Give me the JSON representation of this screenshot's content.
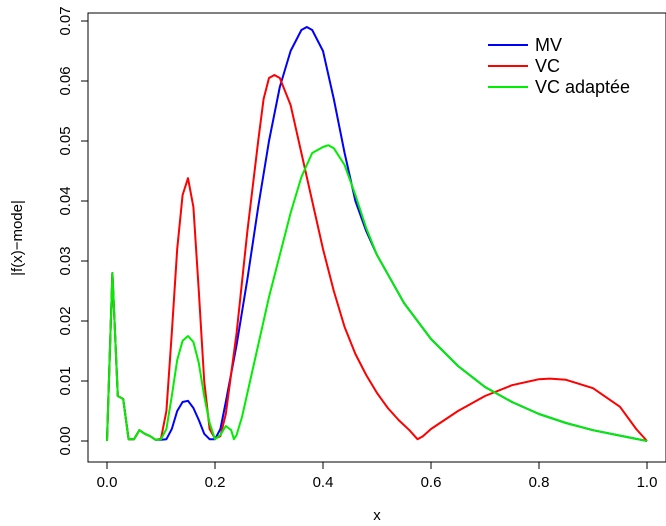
{
  "chart_data": {
    "type": "line",
    "title": "",
    "xlabel": "x",
    "ylabel": "|f(x)−mode|",
    "xlim": [
      0,
      1
    ],
    "ylim": [
      0,
      0.07
    ],
    "xticks": [
      "0.0",
      "0.2",
      "0.4",
      "0.6",
      "0.8",
      "1.0"
    ],
    "yticks": [
      "0.00",
      "0.01",
      "0.02",
      "0.03",
      "0.04",
      "0.05",
      "0.06",
      "0.07"
    ],
    "legend_position": "top-right",
    "grid": false,
    "series": [
      {
        "name": "MV",
        "color": "#0000ff",
        "points": [
          [
            0.0,
            0.0
          ],
          [
            0.01,
            0.028
          ],
          [
            0.02,
            0.0075
          ],
          [
            0.03,
            0.007
          ],
          [
            0.04,
            0.0003
          ],
          [
            0.05,
            0.0003
          ],
          [
            0.06,
            0.0018
          ],
          [
            0.07,
            0.0012
          ],
          [
            0.08,
            0.0008
          ],
          [
            0.09,
            0.0002
          ],
          [
            0.1,
            0.0002
          ],
          [
            0.11,
            0.0003
          ],
          [
            0.12,
            0.002
          ],
          [
            0.13,
            0.005
          ],
          [
            0.14,
            0.0065
          ],
          [
            0.15,
            0.0067
          ],
          [
            0.16,
            0.0055
          ],
          [
            0.17,
            0.0035
          ],
          [
            0.18,
            0.0012
          ],
          [
            0.19,
            0.0003
          ],
          [
            0.2,
            0.0003
          ],
          [
            0.21,
            0.002
          ],
          [
            0.22,
            0.0065
          ],
          [
            0.24,
            0.016
          ],
          [
            0.26,
            0.027
          ],
          [
            0.28,
            0.039
          ],
          [
            0.3,
            0.05
          ],
          [
            0.32,
            0.059
          ],
          [
            0.34,
            0.065
          ],
          [
            0.36,
            0.0685
          ],
          [
            0.37,
            0.069
          ],
          [
            0.38,
            0.0685
          ],
          [
            0.4,
            0.065
          ],
          [
            0.42,
            0.057
          ],
          [
            0.44,
            0.048
          ],
          [
            0.46,
            0.04
          ],
          [
            0.48,
            0.035
          ],
          [
            0.5,
            0.031
          ],
          [
            0.55,
            0.023
          ],
          [
            0.6,
            0.017
          ],
          [
            0.65,
            0.0125
          ],
          [
            0.7,
            0.009
          ],
          [
            0.75,
            0.0065
          ],
          [
            0.8,
            0.0045
          ],
          [
            0.85,
            0.003
          ],
          [
            0.9,
            0.0018
          ],
          [
            0.95,
            0.0009
          ],
          [
            1.0,
            0.0
          ]
        ]
      },
      {
        "name": "VC",
        "color": "#ff0000",
        "points": [
          [
            0.0,
            0.0
          ],
          [
            0.01,
            0.028
          ],
          [
            0.02,
            0.0075
          ],
          [
            0.03,
            0.007
          ],
          [
            0.04,
            0.0003
          ],
          [
            0.05,
            0.0003
          ],
          [
            0.06,
            0.0018
          ],
          [
            0.07,
            0.0012
          ],
          [
            0.08,
            0.0008
          ],
          [
            0.09,
            0.0002
          ],
          [
            0.1,
            0.0004
          ],
          [
            0.11,
            0.005
          ],
          [
            0.12,
            0.018
          ],
          [
            0.13,
            0.032
          ],
          [
            0.14,
            0.041
          ],
          [
            0.15,
            0.0438
          ],
          [
            0.16,
            0.039
          ],
          [
            0.17,
            0.025
          ],
          [
            0.18,
            0.01
          ],
          [
            0.19,
            0.002
          ],
          [
            0.2,
            0.0004
          ],
          [
            0.21,
            0.0008
          ],
          [
            0.22,
            0.0045
          ],
          [
            0.24,
            0.018
          ],
          [
            0.26,
            0.035
          ],
          [
            0.28,
            0.05
          ],
          [
            0.29,
            0.057
          ],
          [
            0.3,
            0.0605
          ],
          [
            0.31,
            0.061
          ],
          [
            0.32,
            0.0605
          ],
          [
            0.34,
            0.056
          ],
          [
            0.36,
            0.048
          ],
          [
            0.38,
            0.04
          ],
          [
            0.4,
            0.032
          ],
          [
            0.42,
            0.025
          ],
          [
            0.44,
            0.019
          ],
          [
            0.46,
            0.0145
          ],
          [
            0.48,
            0.011
          ],
          [
            0.5,
            0.008
          ],
          [
            0.52,
            0.0055
          ],
          [
            0.54,
            0.0035
          ],
          [
            0.56,
            0.0018
          ],
          [
            0.575,
            0.0003
          ],
          [
            0.585,
            0.0008
          ],
          [
            0.6,
            0.002
          ],
          [
            0.65,
            0.005
          ],
          [
            0.7,
            0.0075
          ],
          [
            0.75,
            0.0093
          ],
          [
            0.8,
            0.0103
          ],
          [
            0.82,
            0.0104
          ],
          [
            0.85,
            0.0102
          ],
          [
            0.9,
            0.0088
          ],
          [
            0.95,
            0.0057
          ],
          [
            0.98,
            0.002
          ],
          [
            1.0,
            0.0
          ]
        ]
      },
      {
        "name": "VC adaptée",
        "color": "#00ee00",
        "points": [
          [
            0.0,
            0.0
          ],
          [
            0.01,
            0.028
          ],
          [
            0.02,
            0.0075
          ],
          [
            0.03,
            0.007
          ],
          [
            0.04,
            0.0003
          ],
          [
            0.05,
            0.0003
          ],
          [
            0.06,
            0.0018
          ],
          [
            0.07,
            0.0012
          ],
          [
            0.08,
            0.0008
          ],
          [
            0.09,
            0.0002
          ],
          [
            0.1,
            0.0003
          ],
          [
            0.11,
            0.002
          ],
          [
            0.12,
            0.0075
          ],
          [
            0.13,
            0.0135
          ],
          [
            0.14,
            0.0167
          ],
          [
            0.15,
            0.0175
          ],
          [
            0.16,
            0.0165
          ],
          [
            0.17,
            0.013
          ],
          [
            0.18,
            0.0075
          ],
          [
            0.19,
            0.003
          ],
          [
            0.2,
            0.0003
          ],
          [
            0.21,
            0.001
          ],
          [
            0.22,
            0.0025
          ],
          [
            0.23,
            0.0018
          ],
          [
            0.235,
            0.0003
          ],
          [
            0.24,
            0.001
          ],
          [
            0.25,
            0.004
          ],
          [
            0.26,
            0.008
          ],
          [
            0.28,
            0.016
          ],
          [
            0.3,
            0.024
          ],
          [
            0.32,
            0.031
          ],
          [
            0.34,
            0.038
          ],
          [
            0.36,
            0.044
          ],
          [
            0.38,
            0.048
          ],
          [
            0.4,
            0.049
          ],
          [
            0.41,
            0.0493
          ],
          [
            0.42,
            0.0488
          ],
          [
            0.44,
            0.046
          ],
          [
            0.46,
            0.041
          ],
          [
            0.48,
            0.0355
          ],
          [
            0.5,
            0.031
          ],
          [
            0.55,
            0.023
          ],
          [
            0.6,
            0.017
          ],
          [
            0.65,
            0.0125
          ],
          [
            0.7,
            0.009
          ],
          [
            0.75,
            0.0065
          ],
          [
            0.8,
            0.0045
          ],
          [
            0.85,
            0.003
          ],
          [
            0.9,
            0.0018
          ],
          [
            0.95,
            0.0009
          ],
          [
            1.0,
            0.0
          ]
        ]
      }
    ]
  }
}
